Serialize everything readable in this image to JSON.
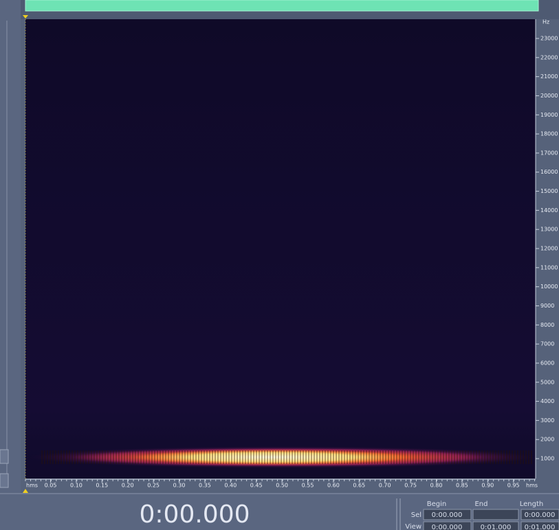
{
  "spectrogram": {
    "frequency_unit": "Hz",
    "frequency_labels": [
      23000,
      22000,
      21000,
      20000,
      19000,
      18000,
      17000,
      16000,
      15000,
      14000,
      13000,
      12000,
      11000,
      10000,
      9000,
      8000,
      7000,
      6000,
      5000,
      4000,
      3000,
      2000,
      1000
    ],
    "time_unit": "hms",
    "time_labels": [
      "0.05",
      "0.10",
      "0.15",
      "0.20",
      "0.25",
      "0.30",
      "0.35",
      "0.40",
      "0.45",
      "0.50",
      "0.55",
      "0.60",
      "0.65",
      "0.70",
      "0.75",
      "0.80",
      "0.85",
      "0.90",
      "0.95"
    ]
  },
  "time_display": "0:00.000",
  "selection_panel": {
    "columns": [
      "Begin",
      "End",
      "Length"
    ],
    "sel": {
      "label": "Sel",
      "begin": "0:00.000",
      "length": "0:00.000"
    },
    "view": {
      "label": "View",
      "begin": "0:00.000",
      "end": "0:01.000",
      "length": "0:01.000"
    }
  }
}
